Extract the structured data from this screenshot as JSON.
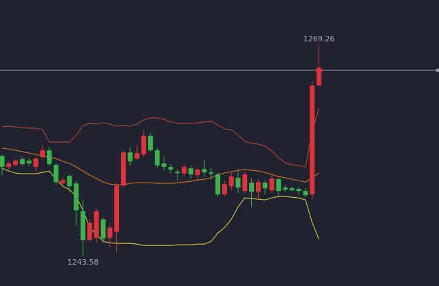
{
  "chart_data": {
    "type": "candlestick",
    "up_color": "#e0313c",
    "down_color": "#3bb44a",
    "open": [
      1255.78,
      1254.44,
      1254.7,
      1255.37,
      1255.2,
      1254.44,
      1255.62,
      1256.45,
      1254.7,
      1252.44,
      1253.36,
      1252.44,
      1249.09,
      1245.57,
      1245.82,
      1248.08,
      1245.82,
      1246.58,
      1252.18,
      1256.2,
      1255.45,
      1255.95,
      1258.21,
      1256.45,
      1254.86,
      1254.44,
      1253.86,
      1253.61,
      1254.28,
      1253.44,
      1254.19,
      1253.77,
      1253.52,
      1251.1,
      1252.1,
      1253.11,
      1251.52,
      1252.52,
      1251.43,
      1252.52,
      1251.6,
      1252.94,
      1251.93,
      1251.85,
      1251.77,
      1251.52,
      1251.1,
      1264.32
    ],
    "high": [
      1255.95,
      1255.11,
      1255.37,
      1255.62,
      1255.53,
      1255.62,
      1257.12,
      1256.87,
      1254.95,
      1253.19,
      1253.52,
      1252.77,
      1250.43,
      1248.08,
      1249.34,
      1248.25,
      1247.41,
      1252.52,
      1256.45,
      1256.87,
      1257.04,
      1258.88,
      1258.55,
      1256.79,
      1255.78,
      1254.78,
      1254.19,
      1254.78,
      1254.61,
      1254.44,
      1255.28,
      1254.36,
      1253.77,
      1252.77,
      1253.77,
      1254.11,
      1253.86,
      1253.11,
      1252.94,
      1252.85,
      1253.36,
      1253.11,
      1252.27,
      1252.1,
      1252.02,
      1251.85,
      1264.82,
      1269.26
    ],
    "low": [
      1253.44,
      1254.11,
      1254.53,
      1254.53,
      1254.53,
      1253.86,
      1255.45,
      1254.53,
      1252.27,
      1252.1,
      1251.43,
      1247.33,
      1243.58,
      1245.4,
      1245.24,
      1245.24,
      1244.74,
      1243.98,
      1251.93,
      1254.61,
      1255.28,
      1255.62,
      1256.29,
      1254.28,
      1253.94,
      1253.61,
      1252.77,
      1253.27,
      1252.94,
      1252.77,
      1253.27,
      1252.94,
      1250.76,
      1250.93,
      1251.6,
      1251.26,
      1251.18,
      1249.59,
      1250.43,
      1251.1,
      1251.26,
      1250.93,
      1251.43,
      1251.43,
      1251.1,
      1250.68,
      1250.51,
      1264.32
    ],
    "close": [
      1254.44,
      1254.86,
      1255.2,
      1254.78,
      1254.86,
      1255.45,
      1256.45,
      1254.78,
      1252.6,
      1252.85,
      1252.1,
      1249.17,
      1245.57,
      1247.66,
      1249.09,
      1245.74,
      1247.08,
      1252.18,
      1256.2,
      1255.11,
      1256.12,
      1258.21,
      1256.45,
      1254.61,
      1254.44,
      1254.11,
      1253.69,
      1254.44,
      1253.52,
      1254.11,
      1253.77,
      1253.61,
      1251.1,
      1252.35,
      1253.27,
      1251.93,
      1253.52,
      1251.43,
      1252.6,
      1251.85,
      1253.02,
      1251.52,
      1251.68,
      1251.6,
      1251.52,
      1251.01,
      1264.32,
      1266.16
    ],
    "series": [
      {
        "color": "#b5452f",
        "values": [
          1259.3,
          1259.38,
          1259.3,
          1259.22,
          1259.13,
          1259.13,
          1258.96,
          1257.46,
          1257.46,
          1257.46,
          1257.46,
          1258.29,
          1259.47,
          1259.72,
          1259.63,
          1259.8,
          1259.63,
          1259.38,
          1259.47,
          1259.38,
          1259.63,
          1260.14,
          1260.39,
          1260.39,
          1260.22,
          1259.89,
          1259.72,
          1259.72,
          1259.72,
          1259.8,
          1259.89,
          1259.97,
          1259.55,
          1259.05,
          1258.96,
          1258.29,
          1257.54,
          1257.29,
          1257.21,
          1256.96,
          1256.37,
          1255.53,
          1254.95,
          1254.7,
          1254.61,
          1254.44,
          1258.8,
          1261.56
        ]
      },
      {
        "color": "#d9761c",
        "values": [
          1256.7,
          1256.62,
          1256.45,
          1256.29,
          1256.12,
          1255.95,
          1255.78,
          1255.62,
          1255.45,
          1255.11,
          1254.86,
          1254.44,
          1253.94,
          1253.44,
          1253.02,
          1252.6,
          1252.35,
          1252.27,
          1252.27,
          1252.44,
          1252.52,
          1252.52,
          1252.52,
          1252.44,
          1252.44,
          1252.44,
          1252.52,
          1252.6,
          1252.69,
          1252.85,
          1252.94,
          1253.11,
          1253.52,
          1253.69,
          1253.86,
          1254.03,
          1254.11,
          1254.03,
          1253.94,
          1253.77,
          1253.52,
          1253.27,
          1253.11,
          1252.94,
          1252.77,
          1252.6,
          1253.11,
          1253.69
        ]
      },
      {
        "color": "#d8c935",
        "values": [
          1254.28,
          1253.94,
          1253.69,
          1253.61,
          1253.61,
          1253.61,
          1253.77,
          1253.94,
          1252.94,
          1252.1,
          1251.68,
          1250.85,
          1249.17,
          1247.08,
          1246.24,
          1245.4,
          1245.24,
          1245.15,
          1245.15,
          1245.15,
          1245.07,
          1244.9,
          1244.9,
          1244.9,
          1244.9,
          1244.9,
          1244.99,
          1244.99,
          1244.99,
          1245.07,
          1245.07,
          1245.4,
          1246.41,
          1247.08,
          1248.08,
          1249.59,
          1250.68,
          1250.59,
          1250.51,
          1250.43,
          1250.68,
          1250.85,
          1250.85,
          1250.76,
          1250.68,
          1250.43,
          1247.66,
          1245.66
        ]
      }
    ]
  }
}
